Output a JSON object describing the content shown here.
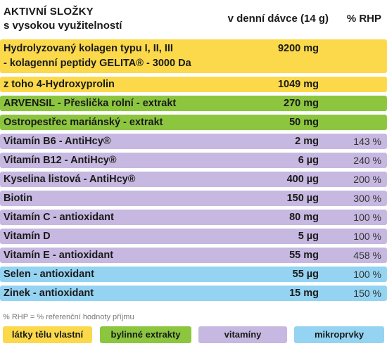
{
  "header": {
    "title": "AKTIVNÍ SLOŽKY",
    "subtitle": "s vysokou využitelností",
    "dose_col": "v denní dávce (14 g)",
    "rhp_col": "% RHP"
  },
  "rows": [
    {
      "name": "Hydrolyzovaný kolagen typu I, II, III",
      "name2": "- kolagenní peptidy GELITA® - 3000 Da",
      "dose": "9200 mg",
      "rhp": "",
      "color": "#fbd94a"
    },
    {
      "name": "z toho 4-Hydroxyprolin",
      "dose": "1049 mg",
      "rhp": "",
      "color": "#fbd94a"
    },
    {
      "name": "ARVENSIL - Přeslička rolní - extrakt",
      "dose": "270 mg",
      "rhp": "",
      "color": "#8cc63f"
    },
    {
      "name": "Ostropestřec mariánský - extrakt",
      "dose": "50 mg",
      "rhp": "",
      "color": "#8cc63f"
    },
    {
      "name": "Vitamín B6 - AntiHcy®",
      "dose": "2 mg",
      "rhp": "143 %",
      "color": "#c6b8e0"
    },
    {
      "name": "Vitamín B12 - AntiHcy®",
      "dose": "6 µg",
      "rhp": "240 %",
      "color": "#c6b8e0"
    },
    {
      "name": "Kyselina listová - AntiHcy®",
      "dose": "400 µg",
      "rhp": "200 %",
      "color": "#c6b8e0"
    },
    {
      "name": "Biotin",
      "dose": "150 µg",
      "rhp": "300 %",
      "color": "#c6b8e0"
    },
    {
      "name": "Vitamín C - antioxidant",
      "dose": "80 mg",
      "rhp": "100 %",
      "color": "#c6b8e0"
    },
    {
      "name": "Vitamín D",
      "dose": "5 µg",
      "rhp": "100 %",
      "color": "#c6b8e0"
    },
    {
      "name": "Vitamín E - antioxidant",
      "dose": "55 mg",
      "rhp": "458 %",
      "color": "#c6b8e0"
    },
    {
      "name": "Selen - antioxidant",
      "dose": "55 µg",
      "rhp": "100 %",
      "color": "#94d3f2"
    },
    {
      "name": "Zinek - antioxidant",
      "dose": "15 mg",
      "rhp": "150 %",
      "color": "#94d3f2"
    }
  ],
  "footnote": "% RHP = % referenční hodnoty příjmu",
  "legend": [
    {
      "label": "látky tělu vlastní",
      "color": "#fbd94a"
    },
    {
      "label": "bylinné extrakty",
      "color": "#8cc63f"
    },
    {
      "label": "vitamíny",
      "color": "#c6b8e0"
    },
    {
      "label": "mikroprvky",
      "color": "#94d3f2"
    }
  ]
}
